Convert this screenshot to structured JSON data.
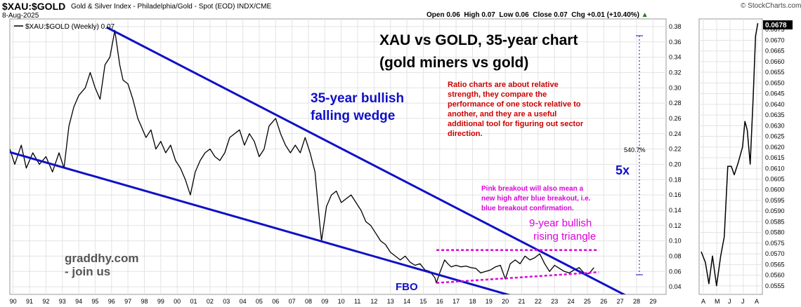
{
  "header": {
    "symbol": "$XAU:$GOLD",
    "description": "Gold & Silver Index - Philadelphia/Gold - Spot (EOD)  INDX/CME",
    "date": "8-Aug-2025",
    "brand": "© StockCharts.com",
    "ohlc": {
      "open_label": "Open",
      "open": "0.06",
      "high_label": "High",
      "high": "0.07",
      "low_label": "Low",
      "low": "0.06",
      "close_label": "Close",
      "close": "0.07",
      "chg_label": "Chg",
      "chg": "+0.01 (+10.40%)",
      "up_arrow": "▲"
    }
  },
  "legend": {
    "label": "$XAU:$GOLD (Weekly) 0.07"
  },
  "annotations": {
    "title_line1": "XAU vs GOLD, 35-year chart",
    "title_line2": "(gold miners vs gold)",
    "wedge_line1": "35-year bullish",
    "wedge_line2": "falling wedge",
    "ratio_note": [
      "Ratio charts are about relative",
      "strength, they compare the",
      "performance of one stock relative to",
      "another, and they are a useful",
      "additional tool for figuring out sector",
      "direction."
    ],
    "pink_note": [
      "Pink breakout will also mean a",
      "new high after blue breakout, i.e.",
      "blue breakout confirmation."
    ],
    "triangle_line1": "9-year bullish",
    "triangle_line2": "rising triangle",
    "fbo": "FBO",
    "five_x": "5x",
    "pct": "540.7%",
    "site_line1": "graddhy.com",
    "site_line2": "- join us"
  },
  "colors": {
    "price_line": "#000000",
    "wedge": "#1010c8",
    "triangle": "#dd00dd",
    "note_red": "#cc0000",
    "last_price_box": "#000000"
  },
  "chart_data": [
    {
      "type": "line",
      "title": "$XAU:$GOLD (Weekly)",
      "x_ticks": [
        "90",
        "91",
        "92",
        "93",
        "94",
        "95",
        "96",
        "97",
        "98",
        "99",
        "00",
        "01",
        "02",
        "03",
        "04",
        "05",
        "06",
        "07",
        "08",
        "09",
        "10",
        "11",
        "12",
        "13",
        "14",
        "15",
        "16",
        "17",
        "18",
        "19",
        "20",
        "21",
        "22",
        "23",
        "24",
        "25",
        "26",
        "27",
        "28",
        "29"
      ],
      "y_ticks": [
        0.04,
        0.06,
        0.08,
        0.1,
        0.12,
        0.14,
        0.16,
        0.18,
        0.2,
        0.22,
        0.24,
        0.26,
        0.28,
        0.3,
        0.32,
        0.34,
        0.36,
        0.38
      ],
      "ylim": [
        0.03,
        0.39
      ],
      "xlim": [
        1990.0,
        2030.0
      ],
      "grid": true,
      "series": [
        {
          "name": "$XAU:$GOLD (Weekly)",
          "points": [
            [
              1990.0,
              0.22
            ],
            [
              1990.3,
              0.2
            ],
            [
              1990.7,
              0.225
            ],
            [
              1991.0,
              0.195
            ],
            [
              1991.4,
              0.215
            ],
            [
              1991.8,
              0.2
            ],
            [
              1992.2,
              0.21
            ],
            [
              1992.6,
              0.19
            ],
            [
              1993.0,
              0.215
            ],
            [
              1993.3,
              0.195
            ],
            [
              1993.6,
              0.25
            ],
            [
              1993.9,
              0.275
            ],
            [
              1994.2,
              0.29
            ],
            [
              1994.6,
              0.3
            ],
            [
              1994.9,
              0.32
            ],
            [
              1995.2,
              0.3
            ],
            [
              1995.5,
              0.285
            ],
            [
              1995.8,
              0.33
            ],
            [
              1996.1,
              0.34
            ],
            [
              1996.4,
              0.375
            ],
            [
              1996.7,
              0.33
            ],
            [
              1996.9,
              0.31
            ],
            [
              1997.2,
              0.305
            ],
            [
              1997.5,
              0.285
            ],
            [
              1997.8,
              0.26
            ],
            [
              1998.0,
              0.25
            ],
            [
              1998.3,
              0.235
            ],
            [
              1998.6,
              0.245
            ],
            [
              1998.9,
              0.22
            ],
            [
              1999.2,
              0.23
            ],
            [
              1999.5,
              0.215
            ],
            [
              1999.8,
              0.225
            ],
            [
              2000.1,
              0.205
            ],
            [
              2000.4,
              0.195
            ],
            [
              2000.7,
              0.18
            ],
            [
              2001.0,
              0.16
            ],
            [
              2001.3,
              0.19
            ],
            [
              2001.6,
              0.205
            ],
            [
              2001.9,
              0.215
            ],
            [
              2002.2,
              0.22
            ],
            [
              2002.5,
              0.21
            ],
            [
              2002.8,
              0.205
            ],
            [
              2003.1,
              0.215
            ],
            [
              2003.4,
              0.235
            ],
            [
              2003.7,
              0.24
            ],
            [
              2004.0,
              0.245
            ],
            [
              2004.3,
              0.225
            ],
            [
              2004.6,
              0.24
            ],
            [
              2004.9,
              0.23
            ],
            [
              2005.2,
              0.21
            ],
            [
              2005.5,
              0.22
            ],
            [
              2005.8,
              0.25
            ],
            [
              2006.2,
              0.26
            ],
            [
              2006.5,
              0.24
            ],
            [
              2006.8,
              0.225
            ],
            [
              2007.1,
              0.215
            ],
            [
              2007.4,
              0.225
            ],
            [
              2007.7,
              0.215
            ],
            [
              2008.0,
              0.235
            ],
            [
              2008.3,
              0.215
            ],
            [
              2008.6,
              0.19
            ],
            [
              2008.9,
              0.12
            ],
            [
              2009.0,
              0.1
            ],
            [
              2009.3,
              0.145
            ],
            [
              2009.6,
              0.16
            ],
            [
              2009.9,
              0.165
            ],
            [
              2010.2,
              0.15
            ],
            [
              2010.5,
              0.155
            ],
            [
              2010.8,
              0.16
            ],
            [
              2011.1,
              0.15
            ],
            [
              2011.4,
              0.14
            ],
            [
              2011.7,
              0.125
            ],
            [
              2012.0,
              0.12
            ],
            [
              2012.3,
              0.11
            ],
            [
              2012.6,
              0.1
            ],
            [
              2012.9,
              0.095
            ],
            [
              2013.2,
              0.085
            ],
            [
              2013.5,
              0.08
            ],
            [
              2013.8,
              0.075
            ],
            [
              2014.1,
              0.08
            ],
            [
              2014.4,
              0.072
            ],
            [
              2014.7,
              0.068
            ],
            [
              2015.0,
              0.07
            ],
            [
              2015.3,
              0.062
            ],
            [
              2015.6,
              0.06
            ],
            [
              2015.9,
              0.052
            ],
            [
              2016.0,
              0.045
            ],
            [
              2016.2,
              0.058
            ],
            [
              2016.5,
              0.075
            ],
            [
              2016.7,
              0.07
            ],
            [
              2016.9,
              0.066
            ],
            [
              2017.2,
              0.068
            ],
            [
              2017.5,
              0.066
            ],
            [
              2017.8,
              0.067
            ],
            [
              2018.1,
              0.065
            ],
            [
              2018.4,
              0.064
            ],
            [
              2018.7,
              0.058
            ],
            [
              2019.0,
              0.06
            ],
            [
              2019.3,
              0.062
            ],
            [
              2019.6,
              0.066
            ],
            [
              2019.9,
              0.068
            ],
            [
              2020.2,
              0.05
            ],
            [
              2020.5,
              0.07
            ],
            [
              2020.8,
              0.075
            ],
            [
              2021.1,
              0.07
            ],
            [
              2021.4,
              0.08
            ],
            [
              2021.7,
              0.075
            ],
            [
              2022.0,
              0.078
            ],
            [
              2022.3,
              0.083
            ],
            [
              2022.6,
              0.07
            ],
            [
              2022.9,
              0.06
            ],
            [
              2023.2,
              0.068
            ],
            [
              2023.5,
              0.064
            ],
            [
              2023.8,
              0.06
            ],
            [
              2024.1,
              0.058
            ],
            [
              2024.4,
              0.062
            ],
            [
              2024.7,
              0.065
            ],
            [
              2025.0,
              0.058
            ],
            [
              2025.3,
              0.057
            ],
            [
              2025.6,
              0.065
            ]
          ]
        },
        {
          "name": "35-year bullish falling wedge (upper)",
          "points": [
            [
              1995.9,
              0.379
            ],
            [
              2028.5,
              0.018
            ]
          ]
        },
        {
          "name": "35-year bullish falling wedge (lower)",
          "points": [
            [
              1989.5,
              0.219
            ],
            [
              2025.2,
              0.0
            ]
          ]
        },
        {
          "name": "9-year bullish rising triangle (top)",
          "points": [
            [
              2016.0,
              0.088
            ],
            [
              2025.9,
              0.088
            ]
          ]
        },
        {
          "name": "9-year bullish rising triangle (bottom)",
          "points": [
            [
              2016.0,
              0.045
            ],
            [
              2025.9,
              0.059
            ]
          ]
        }
      ],
      "annotations": [
        "5x",
        "540.7%"
      ]
    },
    {
      "type": "line",
      "x_ticks": [
        "A",
        "M",
        "J",
        "J",
        "A"
      ],
      "y_ticks": [
        0.0555,
        0.056,
        0.0565,
        0.057,
        0.0575,
        0.058,
        0.0585,
        0.059,
        0.0595,
        0.06,
        0.0605,
        0.061,
        0.0615,
        0.062,
        0.0625,
        0.063,
        0.0635,
        0.064,
        0.0645,
        0.065,
        0.0655,
        0.066,
        0.0665,
        0.067,
        0.0675
      ],
      "ylim": [
        0.0551,
        0.068
      ],
      "last_value": "0.0678",
      "series": [
        {
          "name": "$XAU:$GOLD (Daily)",
          "points": [
            [
              0.0,
              0.0571
            ],
            [
              0.07,
              0.0566
            ],
            [
              0.13,
              0.0556
            ],
            [
              0.19,
              0.0569
            ],
            [
              0.26,
              0.0555
            ],
            [
              0.33,
              0.0569
            ],
            [
              0.39,
              0.0578
            ],
            [
              0.45,
              0.0611
            ],
            [
              0.51,
              0.0611
            ],
            [
              0.56,
              0.0607
            ],
            [
              0.63,
              0.0613
            ],
            [
              0.7,
              0.062
            ],
            [
              0.74,
              0.0632
            ],
            [
              0.78,
              0.0628
            ],
            [
              0.83,
              0.0612
            ],
            [
              0.88,
              0.0643
            ],
            [
              0.92,
              0.0672
            ],
            [
              0.96,
              0.0678
            ]
          ]
        }
      ]
    }
  ]
}
